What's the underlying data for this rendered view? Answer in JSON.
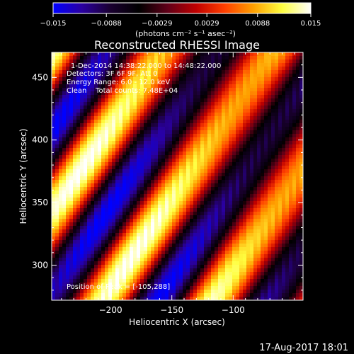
{
  "chart_data": {
    "type": "heatmap",
    "title": "Reconstructed RHESSI Image",
    "xlabel": "Heliocentric X (arcsec)",
    "ylabel": "Heliocentric Y (arcsec)",
    "xlim": [
      -248,
      -43
    ],
    "ylim": [
      272,
      470
    ],
    "x_ticks": [
      -200,
      -150,
      -100
    ],
    "y_ticks": [
      300,
      350,
      400,
      450
    ],
    "x_tick_labels": [
      "−200",
      "−150",
      "−100"
    ],
    "y_tick_labels": [
      "300",
      "350",
      "400",
      "450"
    ],
    "colorbar": {
      "range": [
        -0.015,
        0.015
      ],
      "ticks": [
        -0.015,
        -0.0088,
        -0.0029,
        0.0029,
        0.0088,
        0.015
      ],
      "tick_labels": [
        "−0.015",
        "−0.0088",
        "−0.0029",
        "0.0029",
        "0.0088",
        "0.015"
      ],
      "unit": "(photons cm⁻² s⁻¹ asec⁻²)",
      "colormap": [
        "#0000ff",
        "#2a00a0",
        "#1a0030",
        "#000000",
        "#600018",
        "#c00000",
        "#ff4000",
        "#ffa000",
        "#ffff40",
        "#ffffff"
      ]
    },
    "annotations": [
      "1-Dec-2014 14:38:22.000 to 14:48:22.000",
      "Detectors: 3F 6F 9F, Att 0",
      "Energy Range: 6.0 - 12.0 keV",
      "Clean    Total counts: 7.48E+04"
    ],
    "peak_label": "Position of Peak = [-105,288]",
    "peak": [
      -105,
      288
    ],
    "image_pattern": {
      "description_values": "diagonal fringe pattern",
      "fringe_period_arcsec": 74,
      "fringe_angle_deg": 35,
      "amplitude_min": -0.015,
      "amplitude_max": 0.015
    }
  },
  "footer": {
    "timestamp": "17-Aug-2017 18:01"
  }
}
